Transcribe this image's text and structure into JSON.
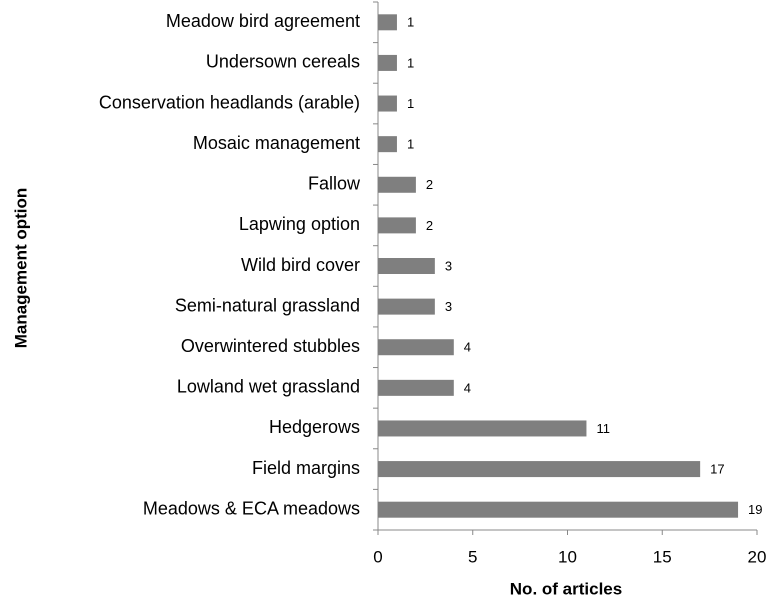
{
  "chart_data": {
    "type": "bar",
    "orientation": "horizontal",
    "x_label": "No. of articles",
    "y_label": "Management option",
    "categories": [
      "Meadow bird agreement",
      "Undersown cereals",
      "Conservation headlands (arable)",
      "Mosaic management",
      "Fallow",
      "Lapwing option",
      "Wild bird cover",
      "Semi-natural grassland",
      "Overwintered stubbles",
      "Lowland wet grassland",
      "Hedgerows",
      "Field margins",
      "Meadows & ECA meadows"
    ],
    "values": [
      1,
      1,
      1,
      1,
      2,
      2,
      3,
      3,
      4,
      4,
      11,
      17,
      19
    ],
    "color": "#7f7f7f",
    "xlim": [
      0,
      20
    ],
    "xticks": [
      0,
      5,
      10,
      15,
      20
    ],
    "grid": false
  }
}
